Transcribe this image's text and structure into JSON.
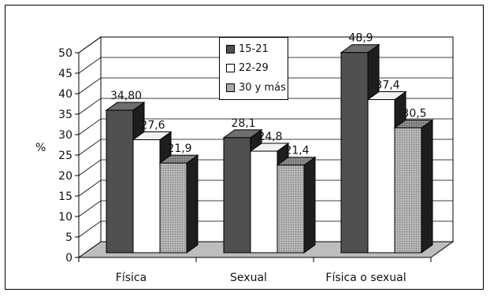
{
  "chart_data": {
    "type": "bar",
    "categories": [
      "Física",
      "Sexual",
      "Física o sexual"
    ],
    "series": [
      {
        "name": "15-21",
        "values": [
          34.8,
          28.1,
          48.9
        ],
        "labels": [
          "34,80",
          "28,1",
          "48,9"
        ],
        "color": "#505050"
      },
      {
        "name": "22-29",
        "values": [
          27.6,
          24.8,
          37.4
        ],
        "labels": [
          "27,6",
          "24,8",
          "37,4"
        ],
        "color": "#ffffff"
      },
      {
        "name": "30 y más",
        "values": [
          21.9,
          21.4,
          30.5
        ],
        "labels": [
          "21,9",
          "21,4",
          "30,5"
        ],
        "color": "#a8a8a8"
      }
    ],
    "ylabel": "%",
    "ylim": [
      0,
      50
    ],
    "yticks": [
      0,
      5,
      10,
      15,
      20,
      25,
      30,
      35,
      40,
      45,
      50
    ],
    "grid": true,
    "legend": "top-center",
    "three_d": true
  }
}
